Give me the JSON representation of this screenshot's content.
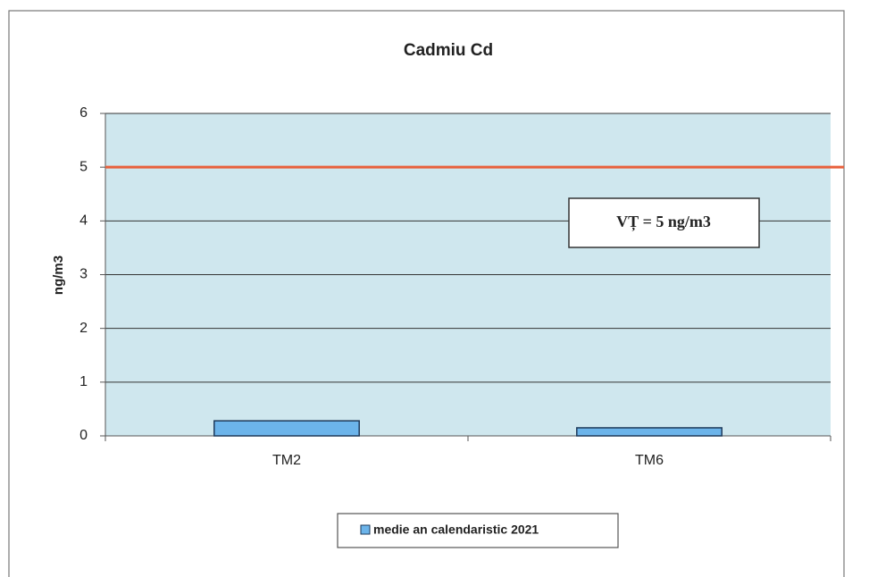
{
  "chart_data": {
    "type": "bar",
    "title": "Cadmiu Cd",
    "y_axis_label": "ng/m3",
    "categories": [
      "TM2",
      "TM6"
    ],
    "series": [
      {
        "name": "medie an calendaristic 2021",
        "color": "#6cb4ea",
        "values": [
          0.28,
          0.15
        ]
      }
    ],
    "ylim": [
      0,
      6
    ],
    "yticks": [
      0,
      1,
      2,
      3,
      4,
      5,
      6
    ],
    "grid": true,
    "reference_line": {
      "value": 5,
      "color": "#e8603c"
    },
    "annotation": "VȚ = 5 ng/m3",
    "legend": "bottom"
  }
}
